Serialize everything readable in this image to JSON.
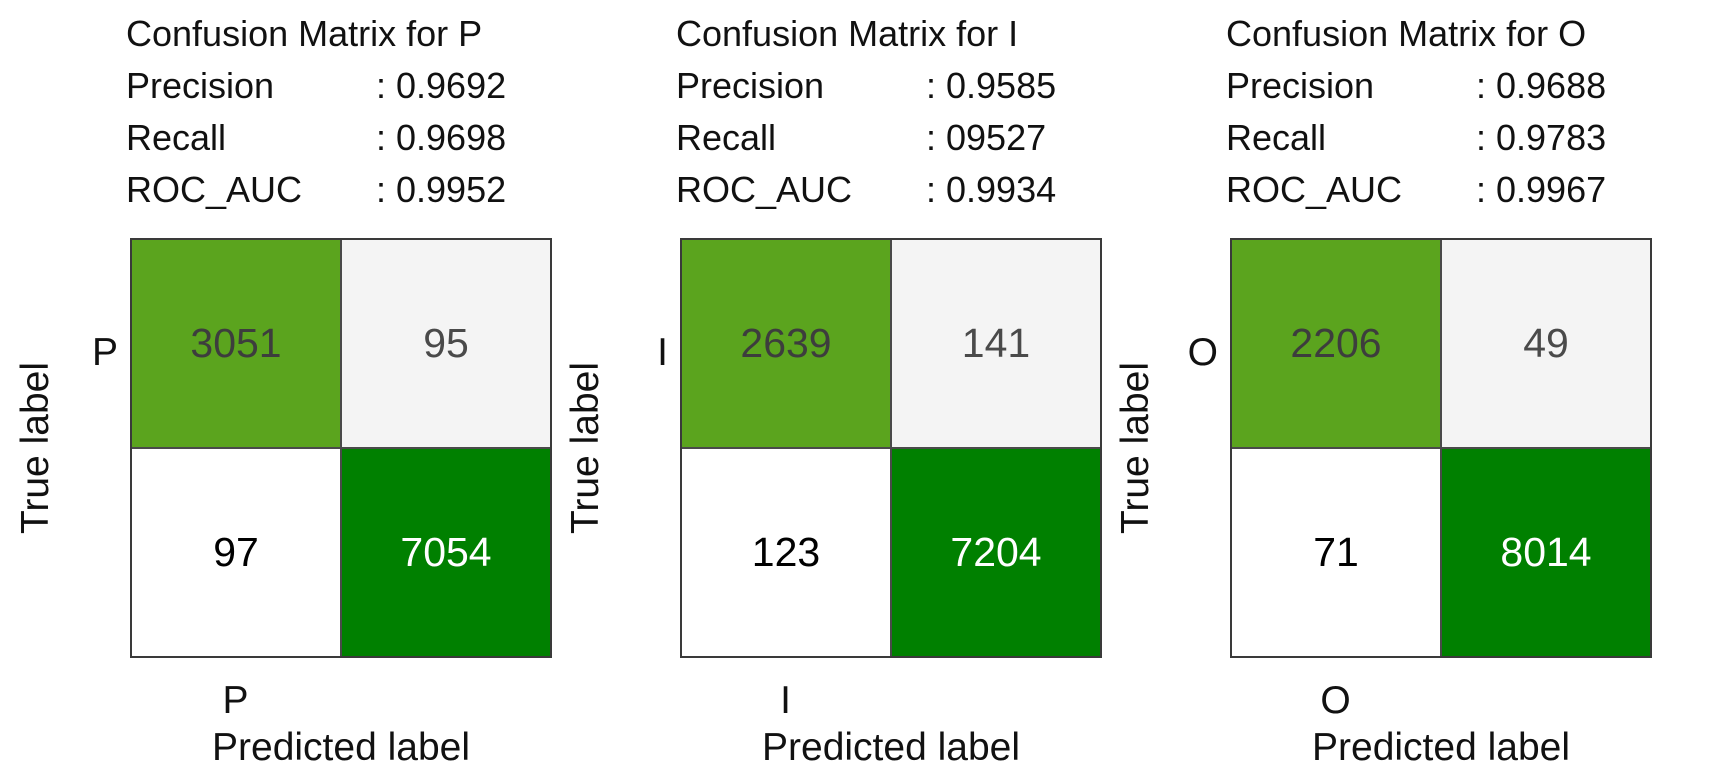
{
  "figure": {
    "background": "#ffffff",
    "colors": {
      "cell_r0c0_bg": "#5ba41e",
      "cell_r0c1_bg": "#f4f4f4",
      "cell_r1c0_bg": "#ffffff",
      "cell_r1c1_bg": "#008000",
      "cell_r0c0_fg": "#3d3d3d",
      "cell_r0c1_fg": "#4a4a4a",
      "cell_r1c0_fg": "#000000",
      "cell_r1c1_fg": "#ffffff",
      "grid_line": "#4a4a4a",
      "spine": "#3a3a3a"
    },
    "panels": [
      {
        "title": "Confusion Matrix for P",
        "metrics": [
          {
            "label": "Precision",
            "value": ": 0.9692"
          },
          {
            "label": "Recall",
            "value": ": 0.9698"
          },
          {
            "label": "ROC_AUC",
            "value": ": 0.9952"
          }
        ],
        "ylabel": "True label",
        "xlabel": "Predicted label",
        "ytick": "P",
        "xtick": "P",
        "cells": [
          [
            "3051",
            "95"
          ],
          [
            "97",
            "7054"
          ]
        ]
      },
      {
        "title": "Confusion Matrix for I",
        "metrics": [
          {
            "label": "Precision",
            "value": ": 0.9585"
          },
          {
            "label": "Recall",
            "value": ": 09527"
          },
          {
            "label": "ROC_AUC",
            "value": ": 0.9934"
          }
        ],
        "ylabel": "True label",
        "xlabel": "Predicted label",
        "ytick": "I",
        "xtick": "I",
        "cells": [
          [
            "2639",
            "141"
          ],
          [
            "123",
            "7204"
          ]
        ]
      },
      {
        "title": "Confusion Matrix for O",
        "metrics": [
          {
            "label": "Precision",
            "value": ": 0.9688"
          },
          {
            "label": "Recall",
            "value": ": 0.9783"
          },
          {
            "label": "ROC_AUC",
            "value": ": 0.9967"
          }
        ],
        "ylabel": "True label",
        "xlabel": "Predicted label",
        "ytick": "O",
        "xtick": "O",
        "cells": [
          [
            "2206",
            "49"
          ],
          [
            "71",
            "8014"
          ]
        ]
      }
    ]
  },
  "chart_data": [
    {
      "type": "heatmap",
      "title": "Confusion Matrix for P",
      "xlabel": "Predicted label",
      "ylabel": "True label",
      "x_ticks": [
        "P",
        ""
      ],
      "y_ticks": [
        "P",
        ""
      ],
      "matrix": [
        [
          3051,
          95
        ],
        [
          97,
          7054
        ]
      ],
      "metrics": {
        "precision": "0.9692",
        "recall": "0.9698",
        "roc_auc": "0.9952"
      },
      "legend_position": "none",
      "grid": false
    },
    {
      "type": "heatmap",
      "title": "Confusion Matrix for I",
      "xlabel": "Predicted label",
      "ylabel": "True label",
      "x_ticks": [
        "I",
        ""
      ],
      "y_ticks": [
        "I",
        ""
      ],
      "matrix": [
        [
          2639,
          141
        ],
        [
          123,
          7204
        ]
      ],
      "metrics": {
        "precision": "0.9585",
        "recall": "09527",
        "roc_auc": "0.9934"
      },
      "legend_position": "none",
      "grid": false
    },
    {
      "type": "heatmap",
      "title": "Confusion Matrix for O",
      "xlabel": "Predicted label",
      "ylabel": "True label",
      "x_ticks": [
        "O",
        ""
      ],
      "y_ticks": [
        "O",
        ""
      ],
      "matrix": [
        [
          2206,
          49
        ],
        [
          71,
          8014
        ]
      ],
      "metrics": {
        "precision": "0.9688",
        "recall": "0.9783",
        "roc_auc": "0.9967"
      },
      "legend_position": "none",
      "grid": false
    }
  ]
}
